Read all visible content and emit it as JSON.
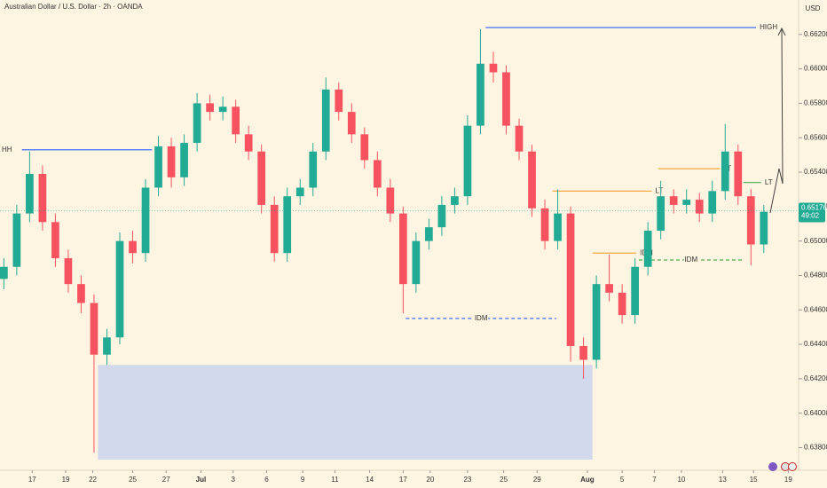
{
  "chart_data": {
    "type": "candlestick",
    "title": "Australian Dollar / U.S. Dollar · 2h · OANDA",
    "currency": "USD",
    "up_color": "#22ab94",
    "down_color": "#f7525f",
    "open": [
      0.6478,
      0.6485,
      0.6516,
      0.6539,
      0.6511,
      0.649,
      0.6475,
      0.6464,
      0.6434,
      0.6444,
      0.65,
      0.6493,
      0.6531,
      0.6555,
      0.6537,
      0.6557,
      0.658,
      0.6575,
      0.6578,
      0.6562,
      0.6552,
      0.6521,
      0.6493,
      0.6526,
      0.6531,
      0.6552,
      0.6588,
      0.6575,
      0.6562,
      0.6547,
      0.6531,
      0.6516,
      0.6475,
      0.65,
      0.6508,
      0.6521,
      0.6526,
      0.6567,
      0.6603,
      0.6598,
      0.6567,
      0.6552,
      0.6519,
      0.65,
      0.6516,
      0.6439,
      0.6431,
      0.6475,
      0.647,
      0.6457,
      0.6485,
      0.6506,
      0.6526,
      0.6521,
      0.6524,
      0.6516,
      0.6529,
      0.6552,
      0.6526,
      0.6498
    ],
    "high": [
      0.649,
      0.6521,
      0.6552,
      0.6544,
      0.6516,
      0.6495,
      0.648,
      0.6469,
      0.6449,
      0.6505,
      0.6506,
      0.6536,
      0.6561,
      0.656,
      0.6562,
      0.6586,
      0.6585,
      0.6584,
      0.6582,
      0.6567,
      0.6556,
      0.6526,
      0.6531,
      0.6536,
      0.6557,
      0.6595,
      0.6592,
      0.658,
      0.6566,
      0.6552,
      0.6536,
      0.652,
      0.6505,
      0.6513,
      0.6526,
      0.6531,
      0.6573,
      0.6623,
      0.661,
      0.6602,
      0.6571,
      0.6556,
      0.6524,
      0.653,
      0.652,
      0.6444,
      0.648,
      0.6492,
      0.6475,
      0.649,
      0.6511,
      0.6535,
      0.653,
      0.653,
      0.6528,
      0.6535,
      0.6568,
      0.6556,
      0.653,
      0.6521
    ],
    "low": [
      0.6472,
      0.648,
      0.6511,
      0.6506,
      0.6485,
      0.647,
      0.6458,
      0.6377,
      0.6428,
      0.644,
      0.6487,
      0.6488,
      0.6526,
      0.6531,
      0.6532,
      0.6552,
      0.657,
      0.657,
      0.6557,
      0.6547,
      0.6516,
      0.6488,
      0.6488,
      0.6521,
      0.6526,
      0.6547,
      0.657,
      0.6557,
      0.6542,
      0.6526,
      0.6511,
      0.6458,
      0.647,
      0.6495,
      0.6503,
      0.6516,
      0.6521,
      0.6562,
      0.6592,
      0.6562,
      0.6547,
      0.6514,
      0.6495,
      0.6495,
      0.643,
      0.642,
      0.6426,
      0.6465,
      0.6452,
      0.6452,
      0.648,
      0.6501,
      0.6516,
      0.6516,
      0.6511,
      0.6511,
      0.6524,
      0.6521,
      0.6486,
      0.6493
    ],
    "close": [
      0.6485,
      0.6516,
      0.6539,
      0.6511,
      0.649,
      0.6475,
      0.6464,
      0.6434,
      0.6444,
      0.65,
      0.6493,
      0.6531,
      0.6555,
      0.6537,
      0.6557,
      0.658,
      0.6575,
      0.6578,
      0.6562,
      0.6552,
      0.6521,
      0.6493,
      0.6526,
      0.6531,
      0.6552,
      0.6588,
      0.6575,
      0.6562,
      0.6547,
      0.6531,
      0.6516,
      0.6475,
      0.65,
      0.6508,
      0.6521,
      0.6526,
      0.6567,
      0.6603,
      0.6598,
      0.6567,
      0.6552,
      0.6519,
      0.65,
      0.6516,
      0.6439,
      0.6431,
      0.6475,
      0.647,
      0.6457,
      0.6485,
      0.6506,
      0.6526,
      0.6521,
      0.6524,
      0.6516,
      0.6529,
      0.6552,
      0.6526,
      0.6498,
      0.6517
    ],
    "xlim": [
      -0.3,
      61.7
    ],
    "ylim": [
      0.6372,
      0.664
    ],
    "xticks": [
      {
        "value": 2.2,
        "label": "17"
      },
      {
        "value": 4.8,
        "label": "19"
      },
      {
        "value": 6.9,
        "label": "22"
      },
      {
        "value": 10.0,
        "label": "25"
      },
      {
        "value": 12.6,
        "label": "27"
      },
      {
        "value": 15.3,
        "label": "Jul"
      },
      {
        "value": 17.8,
        "label": "3"
      },
      {
        "value": 20.4,
        "label": "6"
      },
      {
        "value": 23.2,
        "label": "9"
      },
      {
        "value": 25.7,
        "label": "11"
      },
      {
        "value": 28.4,
        "label": "14"
      },
      {
        "value": 31.0,
        "label": "17"
      },
      {
        "value": 33.1,
        "label": "20"
      },
      {
        "value": 36.0,
        "label": "23"
      },
      {
        "value": 38.8,
        "label": "25"
      },
      {
        "value": 41.4,
        "label": "29"
      },
      {
        "value": 45.3,
        "label": "Aug"
      },
      {
        "value": 48.0,
        "label": "5"
      },
      {
        "value": 50.5,
        "label": "7"
      },
      {
        "value": 52.6,
        "label": "10"
      },
      {
        "value": 55.8,
        "label": "13"
      },
      {
        "value": 58.2,
        "label": "15"
      },
      {
        "value": 60.9,
        "label": "19"
      }
    ],
    "yticks": [
      {
        "value": 0.638,
        "label": "0.63800"
      },
      {
        "value": 0.64,
        "label": "0.64000"
      },
      {
        "value": 0.642,
        "label": "0.64200"
      },
      {
        "value": 0.644,
        "label": "0.64400"
      },
      {
        "value": 0.646,
        "label": "0.64600"
      },
      {
        "value": 0.648,
        "label": "0.64800"
      },
      {
        "value": 0.65,
        "label": "0.65000"
      },
      {
        "value": 0.652,
        "label": "0.65200"
      },
      {
        "value": 0.654,
        "label": "0.65400"
      },
      {
        "value": 0.656,
        "label": "0.65600"
      },
      {
        "value": 0.658,
        "label": "0.65800"
      },
      {
        "value": 0.66,
        "label": "0.66000"
      },
      {
        "value": 0.662,
        "label": "0.66200"
      }
    ],
    "current_price": {
      "value": 0.65176,
      "label": "0.65176"
    },
    "countdown": "49:02",
    "zone": {
      "x": [
        7.3,
        45.7
      ],
      "y": [
        0.6373,
        0.6428
      ],
      "color": "#d3d9ec"
    },
    "levels": [
      {
        "label": "HH",
        "value": 0.6553,
        "x": [
          1.4,
          11.5
        ],
        "color": "#2962ff",
        "dash": false
      },
      {
        "label": "HIGH",
        "value": 0.6624,
        "x": [
          37.4,
          58.4
        ],
        "color": "#2962ff",
        "dash": false
      },
      {
        "label": "IDM",
        "value": 0.6455,
        "x": [
          31.2,
          42.9
        ],
        "color": "#2962ff",
        "dash": true
      },
      {
        "label": "LT",
        "value": 0.6529,
        "x": [
          42.6,
          50.3
        ],
        "color": "#f5a742",
        "dash": false
      },
      {
        "label": "LT",
        "value": 0.6542,
        "x": [
          50.8,
          55.6
        ],
        "color": "#f5a742",
        "dash": false
      },
      {
        "label": "IDM",
        "value": 0.6493,
        "x": [
          45.7,
          49.1
        ],
        "color": "#f5a742",
        "dash": false
      },
      {
        "label": "IDM",
        "value": 0.6489,
        "x": [
          49.3,
          57.4
        ],
        "color": "#4caf50",
        "dash": true
      },
      {
        "label": "LT",
        "value": 0.6534,
        "x": [
          57.4,
          58.8
        ],
        "color": "#4caf50",
        "dash": false
      }
    ]
  }
}
